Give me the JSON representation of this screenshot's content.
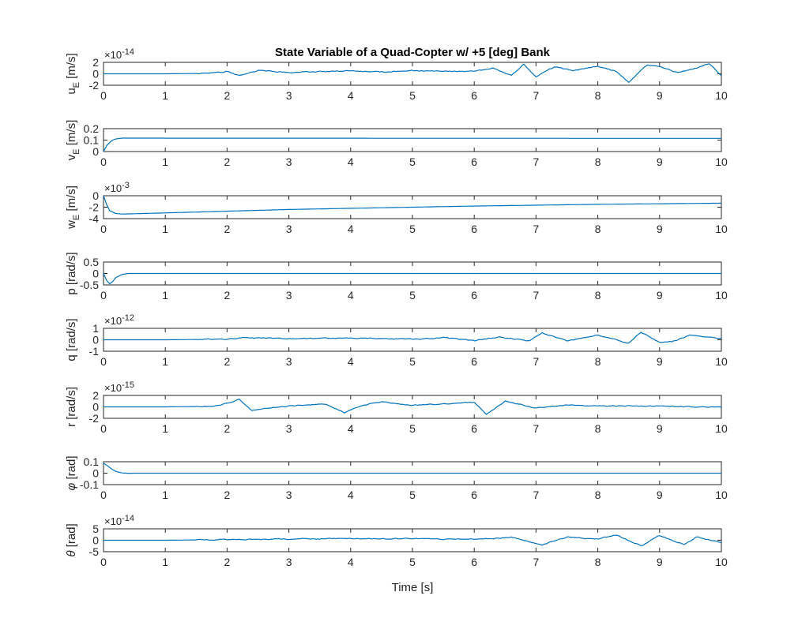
{
  "chart_data": {
    "type": "line",
    "title": "State Variable of a Quad-Copter w/ +5 [deg] Bank",
    "xlabel": "Time [s]",
    "xlim": [
      0,
      10
    ],
    "xticks": [
      "0",
      "1",
      "2",
      "3",
      "4",
      "5",
      "6",
      "7",
      "8",
      "9",
      "10"
    ],
    "color": "#0072BD",
    "subplots": [
      {
        "ylabel_main": "u",
        "ylabel_sub": "E",
        "ylabel_rest": " [m/s]",
        "exponent_label": "10",
        "exponent_power": "-14",
        "ylim": [
          -2,
          2
        ],
        "yticks": [
          "2",
          "0",
          "-2"
        ],
        "series_kind": "noise",
        "t": [
          0,
          1,
          1.5,
          2.0,
          2.2,
          2.5,
          3,
          3.5,
          4,
          4.5,
          5,
          5.5,
          6,
          6.3,
          6.6,
          6.8,
          7.0,
          7.3,
          7.6,
          8.0,
          8.3,
          8.5,
          8.8,
          9.0,
          9.3,
          9.6,
          9.8,
          10
        ],
        "values": [
          0,
          0,
          0.05,
          0.4,
          -0.3,
          0.6,
          0.2,
          0.4,
          0.5,
          0.3,
          0.6,
          0.4,
          0.5,
          1.0,
          -0.3,
          1.6,
          -0.5,
          1.2,
          0.6,
          1.3,
          0.4,
          -1.5,
          1.6,
          1.2,
          0.2,
          1.0,
          1.8,
          -0.4
        ]
      },
      {
        "ylabel_main": "v",
        "ylabel_sub": "E",
        "ylabel_rest": " [m/s]",
        "exponent_label": "",
        "exponent_power": "",
        "ylim": [
          0,
          0.2
        ],
        "yticks": [
          "0.2",
          "0.1",
          "0"
        ],
        "series_kind": "rise",
        "t": [
          0,
          0.05,
          0.1,
          0.15,
          0.2,
          0.3,
          0.5,
          10
        ],
        "values": [
          0,
          0.05,
          0.08,
          0.1,
          0.11,
          0.117,
          0.117,
          0.115
        ]
      },
      {
        "ylabel_main": "w",
        "ylabel_sub": "E",
        "ylabel_rest": " [m/s]",
        "exponent_label": "10",
        "exponent_power": "-3",
        "ylim": [
          -4,
          0
        ],
        "yticks": [
          "0",
          "-2",
          "-4"
        ],
        "series_kind": "dip",
        "t": [
          0,
          0.05,
          0.1,
          0.2,
          0.3,
          1,
          2,
          3,
          4,
          5,
          6,
          7,
          8,
          9,
          10
        ],
        "values": [
          0,
          -1.5,
          -2.6,
          -3.1,
          -3.2,
          -3.0,
          -2.7,
          -2.4,
          -2.2,
          -2.0,
          -1.8,
          -1.65,
          -1.5,
          -1.4,
          -1.3
        ]
      },
      {
        "ylabel_main": "p",
        "ylabel_sub": "",
        "ylabel_rest": " [rad/s]",
        "exponent_label": "",
        "exponent_power": "",
        "ylim": [
          -0.5,
          0.5
        ],
        "yticks": [
          "0.5",
          "0",
          "-0.5"
        ],
        "series_kind": "undershoot",
        "t": [
          0,
          0.05,
          0.1,
          0.15,
          0.2,
          0.3,
          0.4,
          0.5,
          10
        ],
        "values": [
          0,
          -0.3,
          -0.45,
          -0.35,
          -0.18,
          -0.04,
          0,
          0,
          0
        ]
      },
      {
        "ylabel_main": "q",
        "ylabel_sub": "",
        "ylabel_rest": " [rad/s]",
        "exponent_label": "10",
        "exponent_power": "-12",
        "ylim": [
          -1,
          1
        ],
        "yticks": [
          "1",
          "0",
          "-1"
        ],
        "series_kind": "noise",
        "t": [
          0,
          1,
          2,
          2.3,
          3,
          4,
          5,
          5.5,
          6,
          6.4,
          6.9,
          7.1,
          7.5,
          8,
          8.5,
          8.7,
          9.0,
          9.2,
          9.5,
          10
        ],
        "values": [
          0,
          0,
          0.05,
          0.2,
          0.1,
          0.15,
          0.05,
          0.2,
          -0.1,
          0.25,
          -0.1,
          0.6,
          -0.1,
          0.4,
          -0.3,
          0.7,
          -0.25,
          -0.15,
          0.4,
          0.1
        ]
      },
      {
        "ylabel_main": "r",
        "ylabel_sub": "",
        "ylabel_rest": " [rad/s]",
        "exponent_label": "10",
        "exponent_power": "-15",
        "ylim": [
          -2,
          2
        ],
        "yticks": [
          "2",
          "0",
          "-2"
        ],
        "series_kind": "noise",
        "t": [
          0,
          1,
          1.8,
          2.2,
          2.4,
          3,
          3.6,
          3.9,
          4.2,
          4.5,
          5,
          5.5,
          6,
          6.2,
          6.5,
          7,
          7.5,
          8,
          9,
          10
        ],
        "values": [
          0,
          0,
          0.1,
          1.3,
          -0.6,
          0.2,
          0.5,
          -1.0,
          0.3,
          0.9,
          0.3,
          0.5,
          0.8,
          -1.3,
          1.0,
          -0.2,
          0.3,
          0.2,
          0.1,
          0.0
        ]
      },
      {
        "ylabel_main": "φ",
        "ylabel_sub": "",
        "ylabel_rest": " [rad]",
        "exponent_label": "",
        "exponent_power": "",
        "ylim": [
          -0.1,
          0.1
        ],
        "yticks": [
          "0.1",
          "0",
          "-0.1"
        ],
        "series_kind": "decay",
        "t": [
          0,
          0.05,
          0.1,
          0.15,
          0.2,
          0.3,
          0.4,
          0.5,
          10
        ],
        "values": [
          0.0873,
          0.07,
          0.05,
          0.03,
          0.015,
          0.002,
          -0.001,
          0,
          0
        ]
      },
      {
        "ylabel_main": "θ",
        "ylabel_sub": "",
        "ylabel_rest": " [rad]",
        "exponent_label": "10",
        "exponent_power": "-14",
        "ylim": [
          -5,
          5
        ],
        "yticks": [
          "5",
          "0",
          "-5"
        ],
        "series_kind": "noise",
        "t": [
          0,
          1,
          2,
          3,
          4,
          5,
          6,
          6.6,
          7.1,
          7.5,
          8,
          8.3,
          8.7,
          9.0,
          9.4,
          9.6,
          10
        ],
        "values": [
          0,
          0,
          0.3,
          0.5,
          0.8,
          0.6,
          0.5,
          1.2,
          -2.0,
          1.5,
          0.5,
          2.5,
          -2.5,
          2.0,
          -2.0,
          1.5,
          -1.0
        ]
      }
    ]
  }
}
